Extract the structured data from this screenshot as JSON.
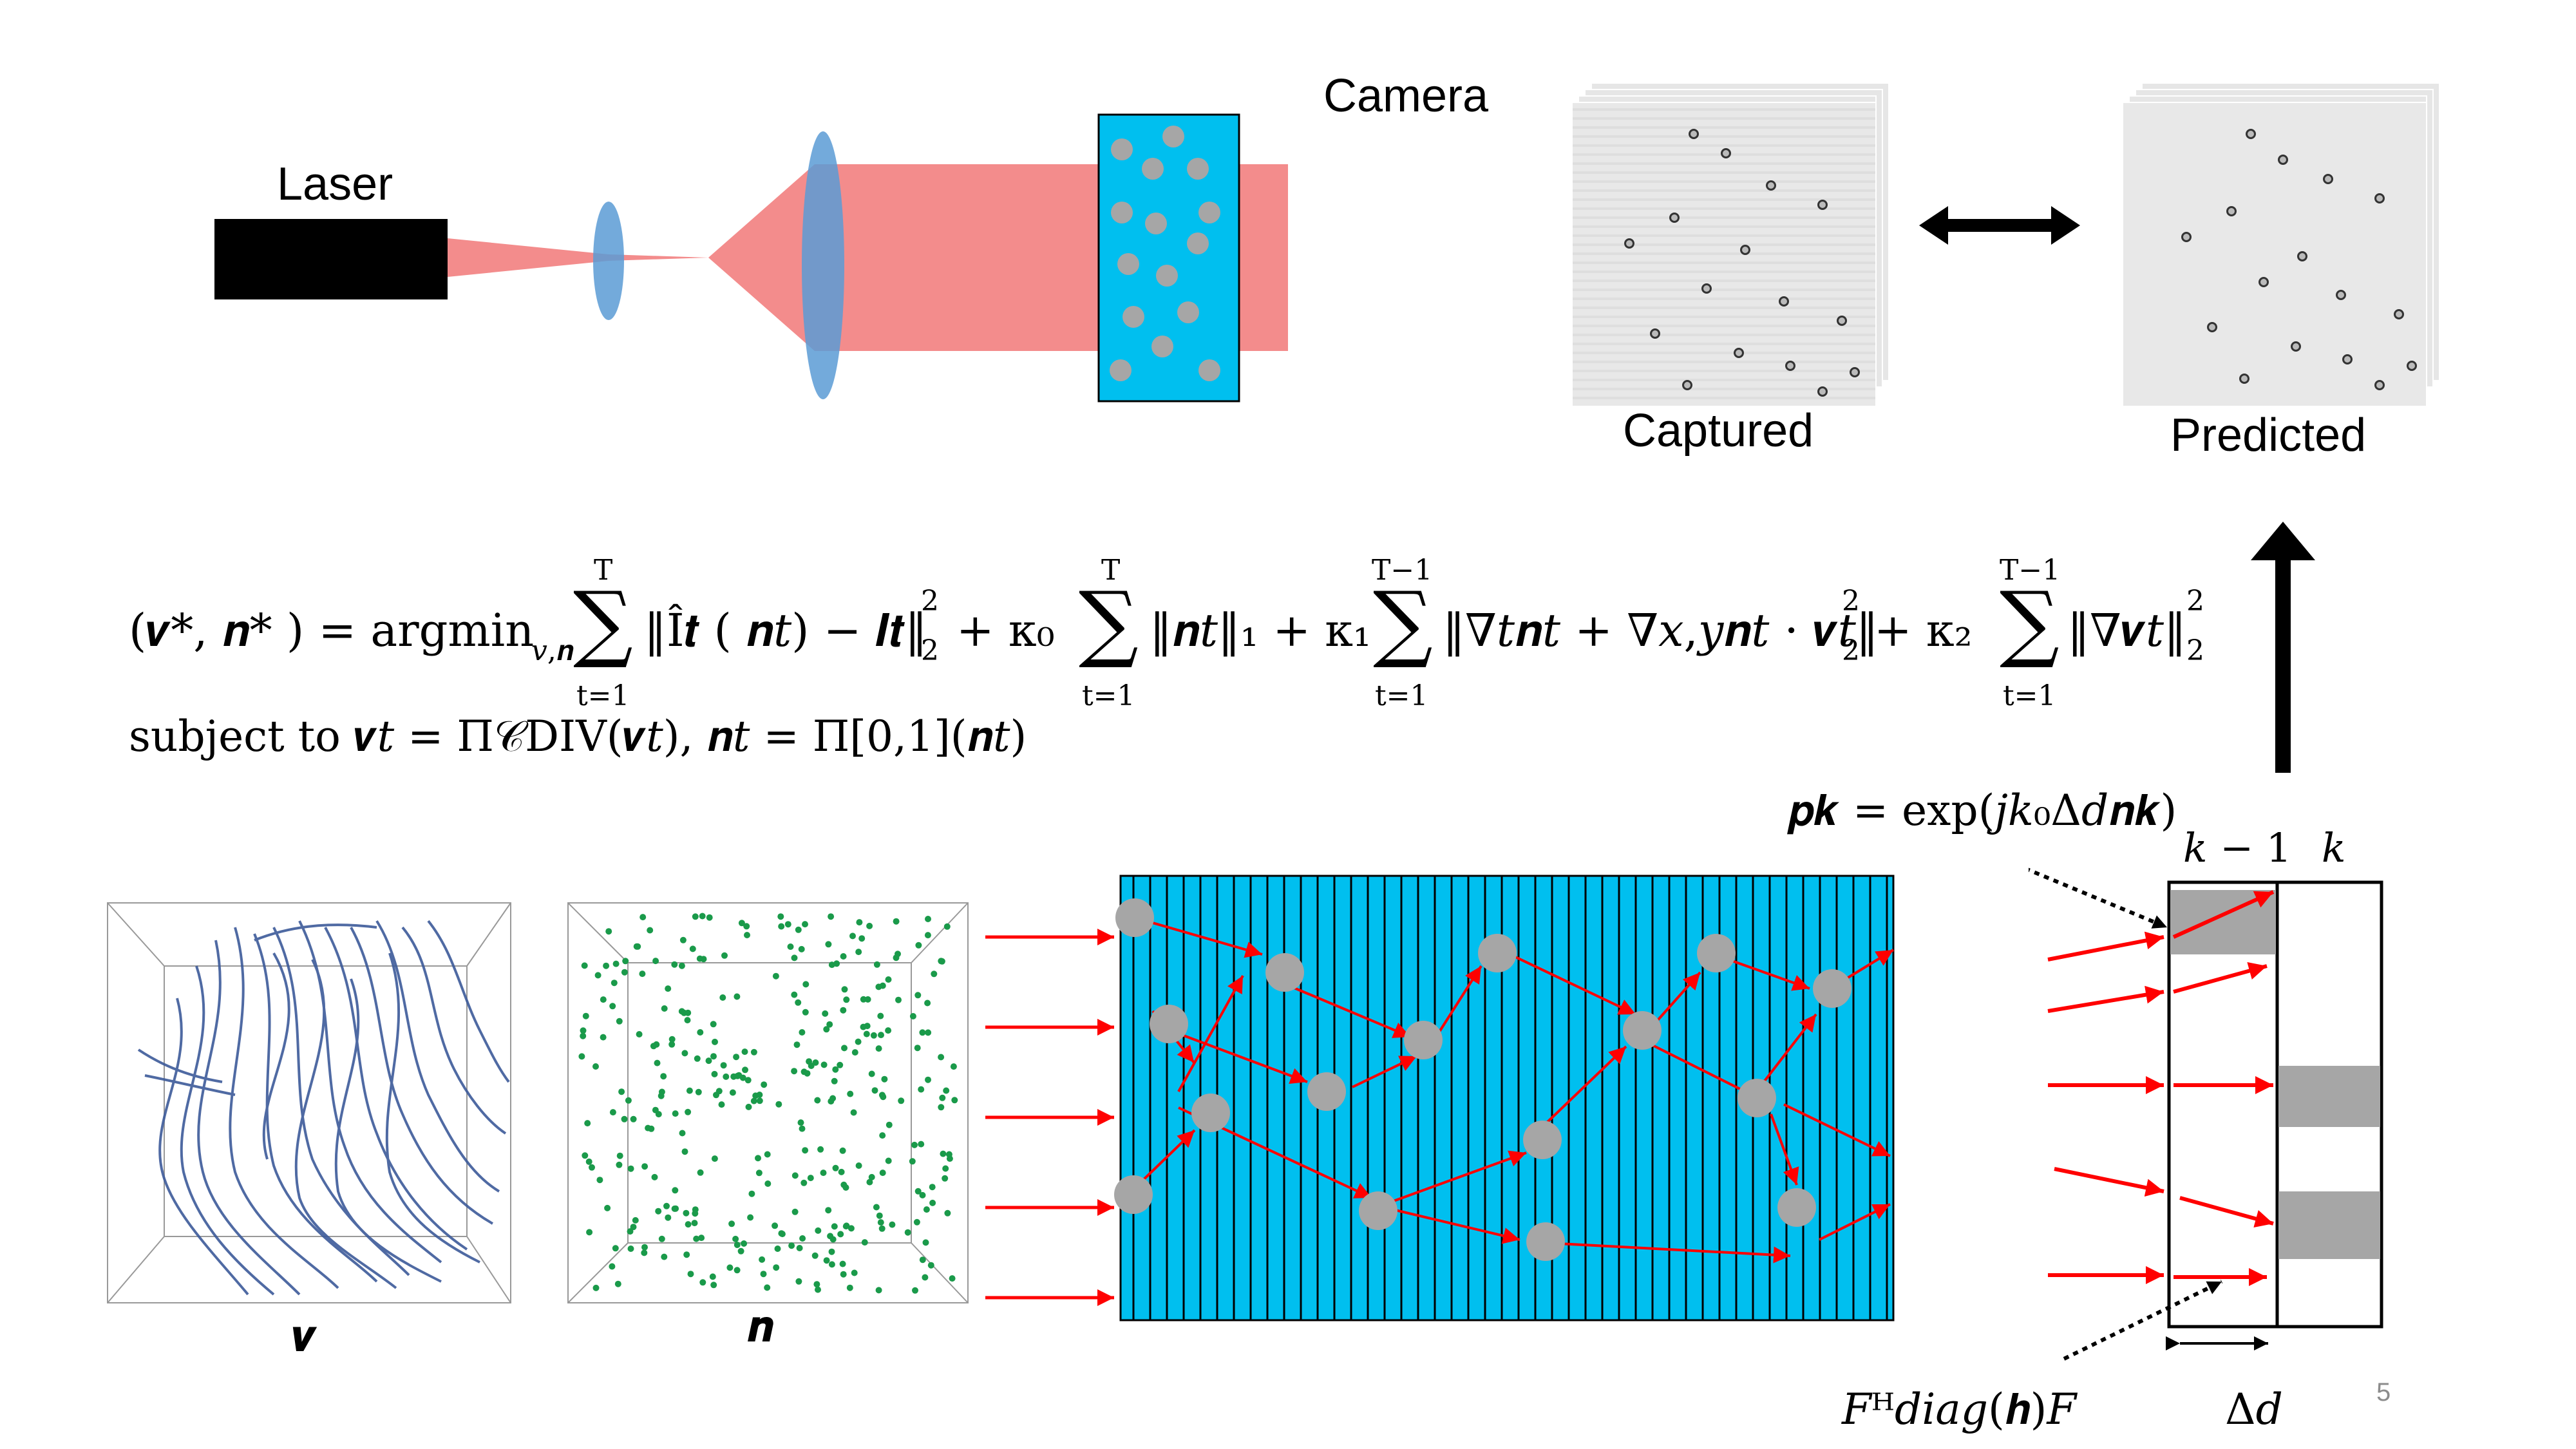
{
  "setup": {
    "laser_label": "Laser",
    "camera_label": "Camera",
    "captured_label": "Captured",
    "predicted_label": "Predicted"
  },
  "equation": {
    "lhs": "(𝒗*, 𝒏* ) = argmin",
    "lhs_sub": "𝑣,𝒏",
    "sum1_top": "T",
    "sum1_bottom": "t=1",
    "term1": "‖Î𝒕 ( 𝒏𝑡) − 𝑰𝒕‖",
    "term1_sup": "2",
    "term1_sub": "2",
    "kappa0": "+ κ₀",
    "sum2_top": "T",
    "sum2_bottom": "t=1",
    "term2": "‖𝒏𝑡‖₁ + κ₁",
    "sum3_top": "T−1",
    "sum3_bottom": "t=1",
    "term3": "‖∇𝑡𝒏𝑡 + ∇𝑥,𝑦𝒏𝑡 ⋅ 𝒗𝑡‖",
    "term3_sup": "2",
    "term3_sub": "2",
    "kappa2": "+ κ₂",
    "sum4_top": "T−1",
    "sum4_bottom": "t=1",
    "term4": "‖∇𝒗𝑡‖",
    "term4_sup": "2",
    "term4_sub": "2",
    "constraint": "subject to 𝒗𝑡 = Π𝒞DIV(𝒗𝑡),        𝒏𝑡 = Π[0,1](𝒏𝑡)"
  },
  "bottom": {
    "v_label": "𝒗",
    "n_label": "𝒏",
    "pk_label": "𝒑𝒌 = exp(𝑗𝑘₀Δ𝑑𝒏𝒌)",
    "k_minus_1_label": "𝑘 − 1",
    "k_label": "𝑘",
    "fh_label": "𝐹ᴴ𝑑𝑖𝑎𝑔(𝒉)𝐹",
    "delta_d_label": "Δ𝑑"
  },
  "page_number": "5",
  "colors": {
    "beam": "#f08080",
    "lens": "#5b9bd5",
    "medium": "#00bfef",
    "particle": "#a6a6a6",
    "arrow": "#ff0000",
    "scatter_dot": "#1a9a4a",
    "streamline": "#3d5a9a"
  }
}
